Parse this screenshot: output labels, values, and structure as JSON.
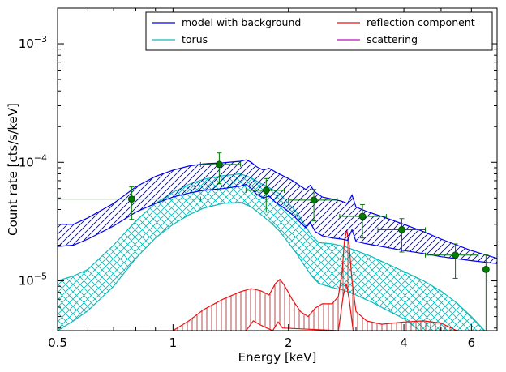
{
  "chart_data": {
    "type": "line",
    "xlabel": "Energy [keV]",
    "ylabel": "Count rate [cts/s/keV]",
    "xscale": "log",
    "yscale": "log",
    "xlim": [
      0.5,
      7.0
    ],
    "ylim": [
      3.8e-06,
      0.002
    ],
    "x_ticks": [
      {
        "value": 0.5,
        "label": "0.5"
      },
      {
        "value": 1,
        "label": "1"
      },
      {
        "value": 2,
        "label": "2"
      },
      {
        "value": 4,
        "label": "4"
      },
      {
        "value": 6,
        "label": "6"
      }
    ],
    "y_ticks": [
      {
        "value": 1e-05,
        "base": "10",
        "exp": "-5"
      },
      {
        "value": 0.0001,
        "base": "10",
        "exp": "-4"
      },
      {
        "value": 0.001,
        "base": "10",
        "exp": "-3"
      }
    ],
    "grid": false,
    "legend": {
      "position": "top-right",
      "columns": 2,
      "entries": [
        {
          "name": "model with background",
          "color": "#0000ee"
        },
        {
          "name": "reflection component",
          "color": "#ee1111"
        },
        {
          "name": "torus",
          "color": "#11bbbb"
        },
        {
          "name": "scattering",
          "color": "#bb11bb"
        }
      ]
    },
    "colors": {
      "model": "#0000ee",
      "torus": "#11bbbb",
      "reflection": "#ee1111",
      "reflection_hatch": "#a83a3a",
      "scattering": "#bb11bb",
      "data": "#007a00"
    },
    "bands": [
      {
        "name": "model with background",
        "color": "#0000ee",
        "hatch": "diagonal",
        "upper": [
          [
            0.5,
            3e-05
          ],
          [
            0.55,
            3e-05
          ],
          [
            0.6,
            3.4e-05
          ],
          [
            0.7,
            4.5e-05
          ],
          [
            0.8,
            6.2e-05
          ],
          [
            0.9,
            7.6e-05
          ],
          [
            1.0,
            8.6e-05
          ],
          [
            1.1,
            9.3e-05
          ],
          [
            1.2,
            9.7e-05
          ],
          [
            1.35,
            9.9e-05
          ],
          [
            1.5,
            0.000102
          ],
          [
            1.55,
            0.000105
          ],
          [
            1.6,
            0.0001
          ],
          [
            1.65,
            9.2e-05
          ],
          [
            1.72,
            8.6e-05
          ],
          [
            1.78,
            8.9e-05
          ],
          [
            1.85,
            8.3e-05
          ],
          [
            1.95,
            7.6e-05
          ],
          [
            2.05,
            7e-05
          ],
          [
            2.15,
            6.3e-05
          ],
          [
            2.22,
            5.9e-05
          ],
          [
            2.28,
            6.4e-05
          ],
          [
            2.35,
            5.6e-05
          ],
          [
            2.45,
            5.1e-05
          ],
          [
            2.6,
            4.9e-05
          ],
          [
            2.75,
            4.7e-05
          ],
          [
            2.85,
            4.5e-05
          ],
          [
            2.93,
            5.3e-05
          ],
          [
            3.0,
            4.2e-05
          ],
          [
            3.2,
            3.85e-05
          ],
          [
            3.5,
            3.5e-05
          ],
          [
            4.0,
            3e-05
          ],
          [
            4.5,
            2.6e-05
          ],
          [
            5.0,
            2.25e-05
          ],
          [
            6.0,
            1.8e-05
          ],
          [
            7.0,
            1.55e-05
          ]
        ],
        "lower": [
          [
            0.5,
            1.95e-05
          ],
          [
            0.55,
            2e-05
          ],
          [
            0.6,
            2.25e-05
          ],
          [
            0.7,
            2.9e-05
          ],
          [
            0.8,
            3.8e-05
          ],
          [
            0.9,
            4.5e-05
          ],
          [
            1.0,
            5.1e-05
          ],
          [
            1.1,
            5.5e-05
          ],
          [
            1.2,
            5.8e-05
          ],
          [
            1.35,
            6e-05
          ],
          [
            1.5,
            6.3e-05
          ],
          [
            1.55,
            6.5e-05
          ],
          [
            1.6,
            6e-05
          ],
          [
            1.65,
            5.4e-05
          ],
          [
            1.72,
            5e-05
          ],
          [
            1.78,
            5.2e-05
          ],
          [
            1.85,
            4.6e-05
          ],
          [
            1.95,
            4.1e-05
          ],
          [
            2.05,
            3.6e-05
          ],
          [
            2.15,
            3.1e-05
          ],
          [
            2.22,
            2.8e-05
          ],
          [
            2.28,
            3.1e-05
          ],
          [
            2.35,
            2.6e-05
          ],
          [
            2.45,
            2.4e-05
          ],
          [
            2.6,
            2.3e-05
          ],
          [
            2.75,
            2.25e-05
          ],
          [
            2.85,
            2.2e-05
          ],
          [
            2.93,
            2.7e-05
          ],
          [
            3.0,
            2.15e-05
          ],
          [
            3.2,
            2.05e-05
          ],
          [
            3.5,
            1.95e-05
          ],
          [
            4.0,
            1.8e-05
          ],
          [
            4.5,
            1.7e-05
          ],
          [
            5.0,
            1.6e-05
          ],
          [
            6.0,
            1.48e-05
          ],
          [
            7.0,
            1.4e-05
          ]
        ]
      },
      {
        "name": "torus",
        "color": "#11bbbb",
        "hatch": "cross",
        "upper": [
          [
            0.5,
            1e-05
          ],
          [
            0.55,
            1.1e-05
          ],
          [
            0.6,
            1.25e-05
          ],
          [
            0.7,
            2e-05
          ],
          [
            0.8,
            3.2e-05
          ],
          [
            0.9,
            4.5e-05
          ],
          [
            1.0,
            5.6e-05
          ],
          [
            1.1,
            6.5e-05
          ],
          [
            1.2,
            7.2e-05
          ],
          [
            1.35,
            7.7e-05
          ],
          [
            1.5,
            8e-05
          ],
          [
            1.6,
            7.4e-05
          ],
          [
            1.7,
            6.6e-05
          ],
          [
            1.8,
            6e-05
          ],
          [
            1.9,
            5.4e-05
          ],
          [
            2.0,
            4.5e-05
          ],
          [
            2.1,
            3.8e-05
          ],
          [
            2.2,
            3e-05
          ],
          [
            2.3,
            2.4e-05
          ],
          [
            2.4,
            2.1e-05
          ],
          [
            2.6,
            2.05e-05
          ],
          [
            2.8,
            1.95e-05
          ],
          [
            3.0,
            1.8e-05
          ],
          [
            3.3,
            1.6e-05
          ],
          [
            3.6,
            1.4e-05
          ],
          [
            4.0,
            1.2e-05
          ],
          [
            4.5,
            1e-05
          ],
          [
            5.0,
            8.2e-06
          ],
          [
            5.5,
            6.5e-06
          ],
          [
            6.0,
            5e-06
          ],
          [
            6.5,
            3.8e-06
          ]
        ],
        "lower": [
          [
            0.5,
            3.8e-06
          ],
          [
            0.55,
            4.6e-06
          ],
          [
            0.6,
            5.6e-06
          ],
          [
            0.7,
            9e-06
          ],
          [
            0.8,
            1.55e-05
          ],
          [
            0.9,
            2.3e-05
          ],
          [
            1.0,
            3e-05
          ],
          [
            1.1,
            3.6e-05
          ],
          [
            1.2,
            4.1e-05
          ],
          [
            1.35,
            4.5e-05
          ],
          [
            1.5,
            4.6e-05
          ],
          [
            1.6,
            4.2e-05
          ],
          [
            1.7,
            3.6e-05
          ],
          [
            1.8,
            3.1e-05
          ],
          [
            1.9,
            2.6e-05
          ],
          [
            2.0,
            2.1e-05
          ],
          [
            2.1,
            1.7e-05
          ],
          [
            2.2,
            1.35e-05
          ],
          [
            2.3,
            1.1e-05
          ],
          [
            2.4,
            9.5e-06
          ],
          [
            2.6,
            8.8e-06
          ],
          [
            2.8,
            8.3e-06
          ],
          [
            3.0,
            7.6e-06
          ],
          [
            3.3,
            6.6e-06
          ],
          [
            3.6,
            5.7e-06
          ],
          [
            4.0,
            4.8e-06
          ],
          [
            4.4,
            3.8e-06
          ]
        ]
      },
      {
        "name": "reflection component",
        "color": "#ee1111",
        "hatch": "vertical",
        "upper": [
          [
            1.0,
            3.8e-06
          ],
          [
            1.1,
            4.6e-06
          ],
          [
            1.2,
            5.7e-06
          ],
          [
            1.35,
            7e-06
          ],
          [
            1.5,
            8.1e-06
          ],
          [
            1.6,
            8.6e-06
          ],
          [
            1.7,
            8.2e-06
          ],
          [
            1.78,
            7.6e-06
          ],
          [
            1.85,
            9.5e-06
          ],
          [
            1.9,
            1.03e-05
          ],
          [
            1.95,
            9.2e-06
          ],
          [
            2.05,
            6.9e-06
          ],
          [
            2.15,
            5.5e-06
          ],
          [
            2.25,
            5e-06
          ],
          [
            2.35,
            5.9e-06
          ],
          [
            2.45,
            6.4e-06
          ],
          [
            2.6,
            6.4e-06
          ],
          [
            2.7,
            7.4e-06
          ],
          [
            2.76,
            1.2e-05
          ],
          [
            2.8,
            2.2e-05
          ],
          [
            2.84,
            2.7e-05
          ],
          [
            2.88,
            2e-05
          ],
          [
            2.93,
            1e-05
          ],
          [
            3.0,
            5.5e-06
          ],
          [
            3.2,
            4.6e-06
          ],
          [
            3.5,
            4.3e-06
          ],
          [
            4.0,
            4.5e-06
          ],
          [
            4.5,
            4.6e-06
          ],
          [
            5.0,
            4.4e-06
          ],
          [
            5.5,
            3.8e-06
          ]
        ],
        "lower": [
          [
            1.55,
            3.8e-06
          ],
          [
            1.62,
            4.6e-06
          ],
          [
            1.7,
            4.2e-06
          ],
          [
            1.82,
            3.8e-06
          ],
          [
            1.88,
            4.5e-06
          ],
          [
            1.93,
            4e-06
          ],
          [
            2.7,
            3.8e-06
          ],
          [
            2.78,
            7.5e-06
          ],
          [
            2.83,
            9.5e-06
          ],
          [
            2.88,
            7e-06
          ],
          [
            2.95,
            3.8e-06
          ]
        ]
      }
    ],
    "data_points": [
      {
        "x": 0.78,
        "y": 4.9e-05,
        "x_low": 0.5,
        "x_high": 1.18,
        "y_low": 3.3e-05,
        "y_high": 6.2e-05
      },
      {
        "x": 1.32,
        "y": 9.6e-05,
        "x_low": 1.18,
        "x_high": 1.5,
        "y_low": 6.6e-05,
        "y_high": 0.00012
      },
      {
        "x": 1.75,
        "y": 5.8e-05,
        "x_low": 1.55,
        "x_high": 1.95,
        "y_low": 3.8e-05,
        "y_high": 7.3e-05
      },
      {
        "x": 2.33,
        "y": 4.8e-05,
        "x_low": 2.0,
        "x_high": 2.68,
        "y_low": 3.2e-05,
        "y_high": 5.9e-05
      },
      {
        "x": 3.12,
        "y": 3.5e-05,
        "x_low": 2.72,
        "x_high": 3.6,
        "y_low": 2.3e-05,
        "y_high": 4.4e-05
      },
      {
        "x": 3.95,
        "y": 2.7e-05,
        "x_low": 3.42,
        "x_high": 4.55,
        "y_low": 1.75e-05,
        "y_high": 3.35e-05
      },
      {
        "x": 5.45,
        "y": 1.65e-05,
        "x_low": 4.55,
        "x_high": 6.25,
        "y_low": 1.05e-05,
        "y_high": 2.05e-05
      },
      {
        "x": 6.55,
        "y": 1.25e-05,
        "x_low": 6.55,
        "x_high": 6.55,
        "y_low": 3.8e-06,
        "y_high": 1.65e-05
      }
    ]
  }
}
